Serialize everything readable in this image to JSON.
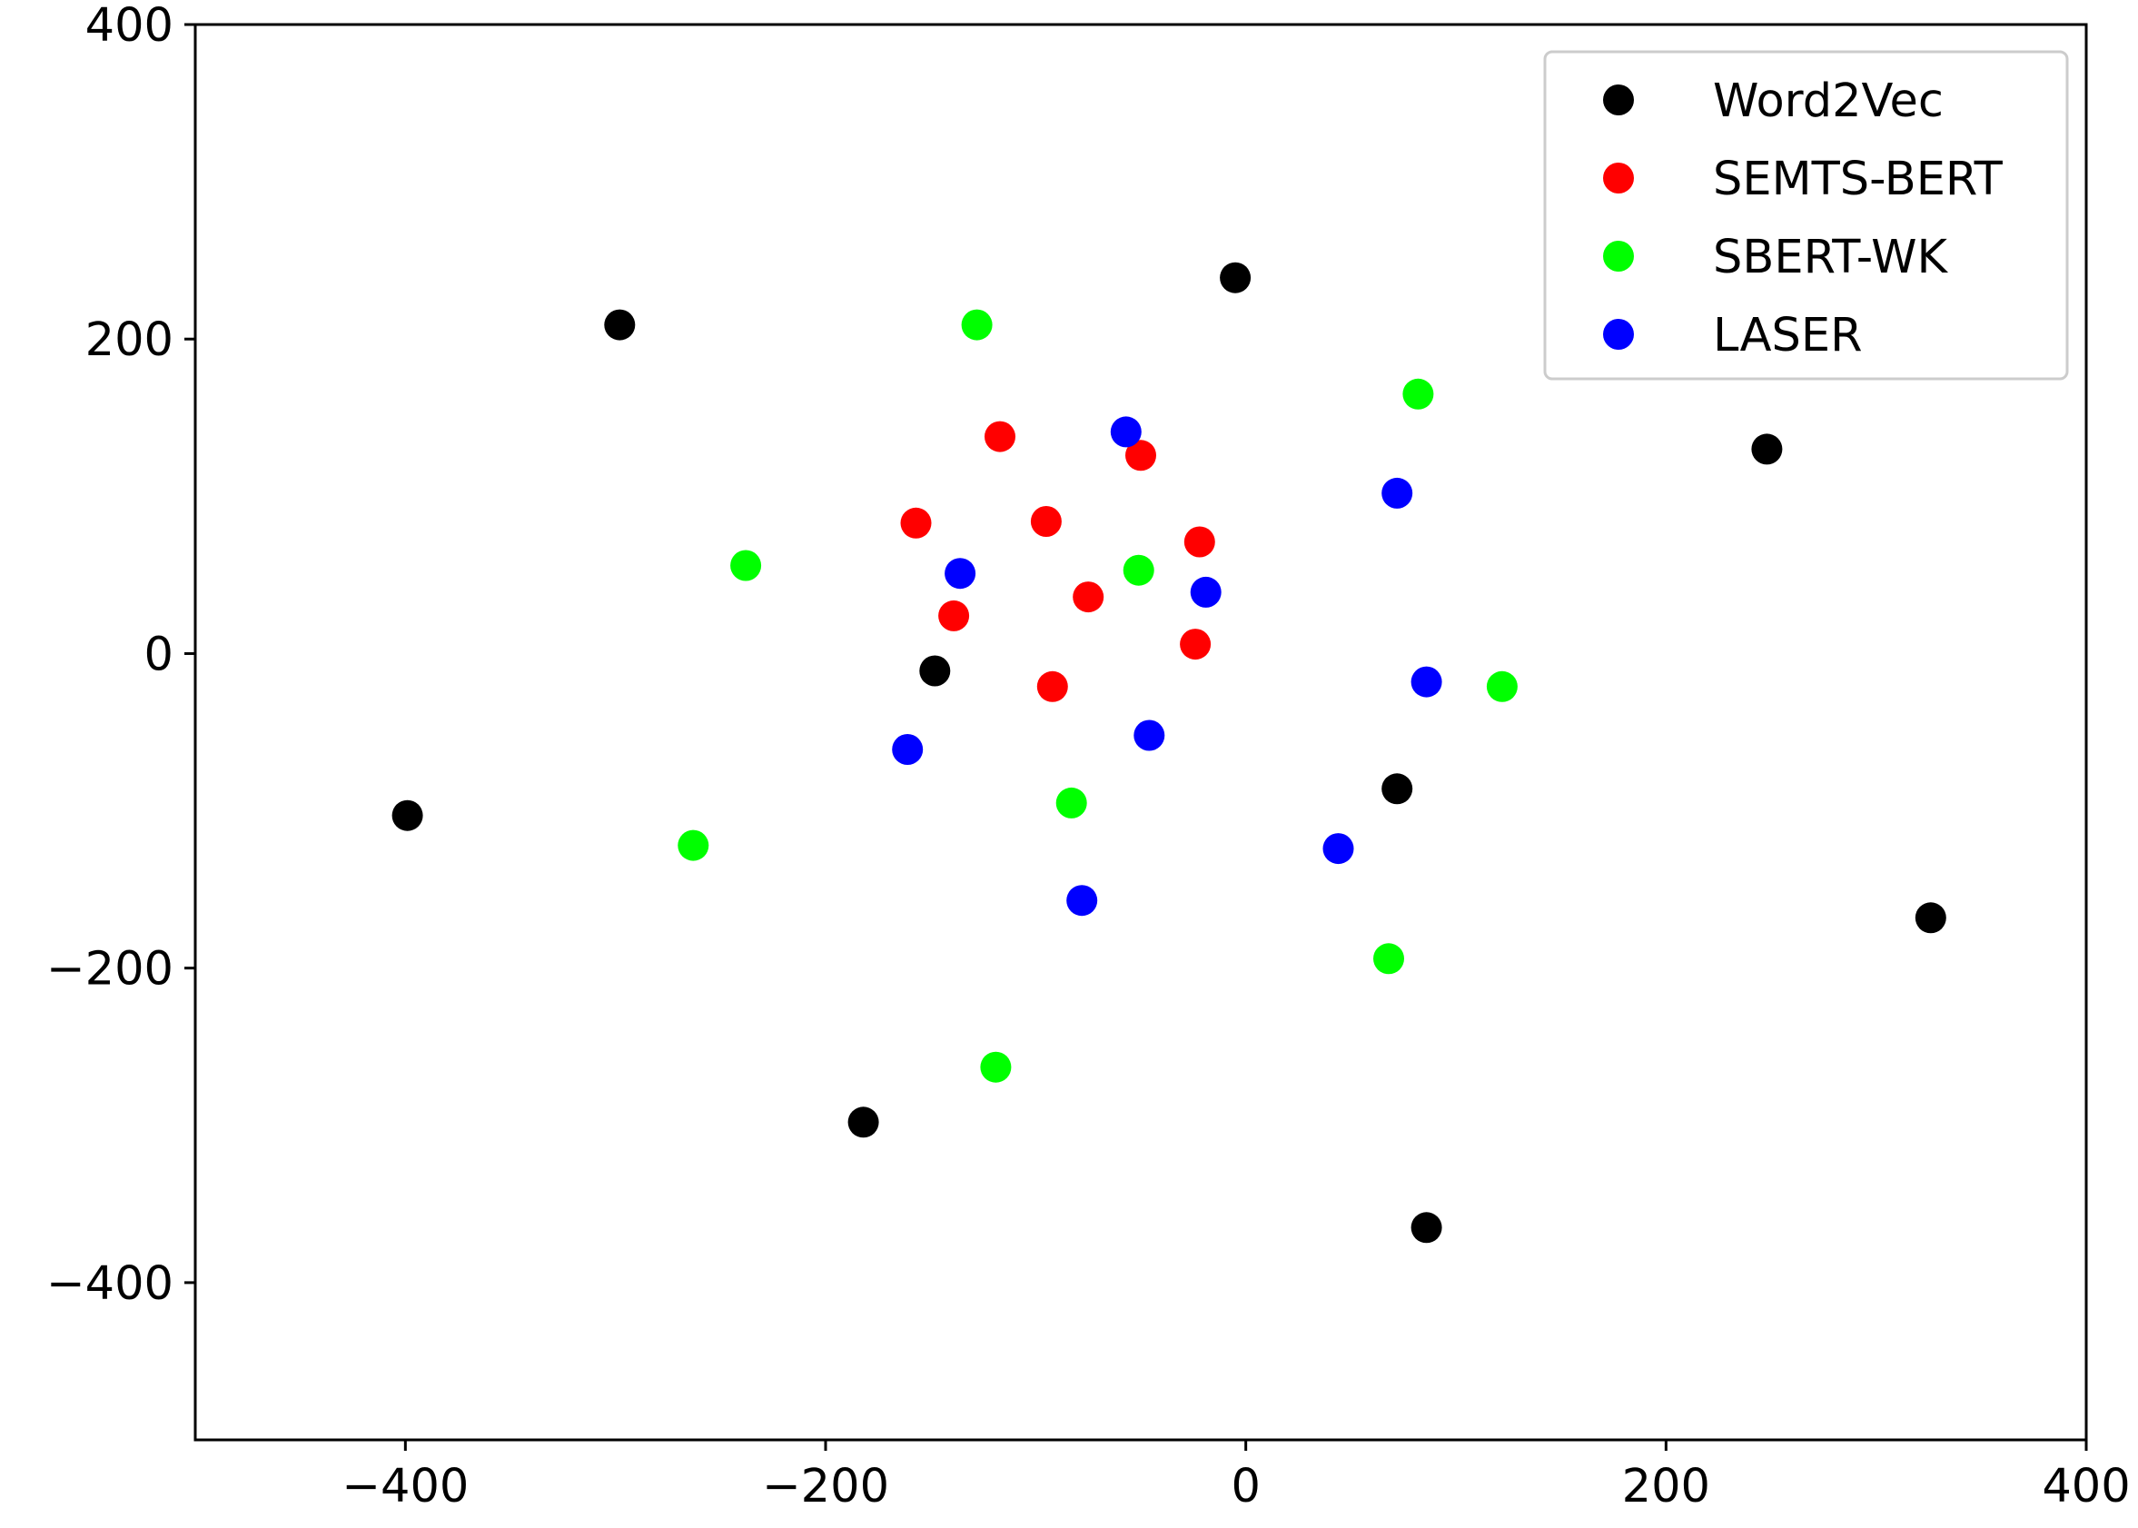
{
  "chart_data": {
    "type": "scatter",
    "title": "",
    "xlabel": "",
    "ylabel": "",
    "xlim": [
      -500,
      400
    ],
    "ylim": [
      -500,
      400
    ],
    "x_ticks": [
      -400,
      -200,
      0,
      200,
      400
    ],
    "y_ticks": [
      -400,
      -200,
      0,
      200,
      400
    ],
    "x_tick_labels": [
      "−400",
      "−200",
      "0",
      "200",
      "400"
    ],
    "y_tick_labels": [
      "−400",
      "−200",
      "0",
      "200",
      "400"
    ],
    "grid": false,
    "legend_position": "top-right",
    "series": [
      {
        "name": "Word2Vec",
        "color": "#000000",
        "points": [
          [
            -298,
            209
          ],
          [
            -5,
            239
          ],
          [
            248,
            130
          ],
          [
            -148,
            -11
          ],
          [
            -399,
            -103
          ],
          [
            72,
            -86
          ],
          [
            326,
            -168
          ],
          [
            -182,
            -298
          ],
          [
            86,
            -365
          ]
        ]
      },
      {
        "name": "SEMTS-BERT",
        "color": "#ff0000",
        "points": [
          [
            -117,
            138
          ],
          [
            -50,
            126
          ],
          [
            -157,
            83
          ],
          [
            -95,
            84
          ],
          [
            -22,
            71
          ],
          [
            -75,
            36
          ],
          [
            -139,
            24
          ],
          [
            -24,
            6
          ],
          [
            -92,
            -21
          ]
        ]
      },
      {
        "name": "SBERT-WK",
        "color": "#00ff00",
        "points": [
          [
            -128,
            209
          ],
          [
            82,
            165
          ],
          [
            -238,
            56
          ],
          [
            -51,
            53
          ],
          [
            122,
            -21
          ],
          [
            -263,
            -122
          ],
          [
            -83,
            -95
          ],
          [
            68,
            -194
          ],
          [
            -119,
            -263
          ]
        ]
      },
      {
        "name": "LASER",
        "color": "#0000ff",
        "points": [
          [
            -57,
            141
          ],
          [
            72,
            102
          ],
          [
            -136,
            51
          ],
          [
            -19,
            39
          ],
          [
            86,
            -18
          ],
          [
            -161,
            -61
          ],
          [
            -46,
            -52
          ],
          [
            44,
            -124
          ],
          [
            -78,
            -157
          ]
        ]
      }
    ]
  }
}
